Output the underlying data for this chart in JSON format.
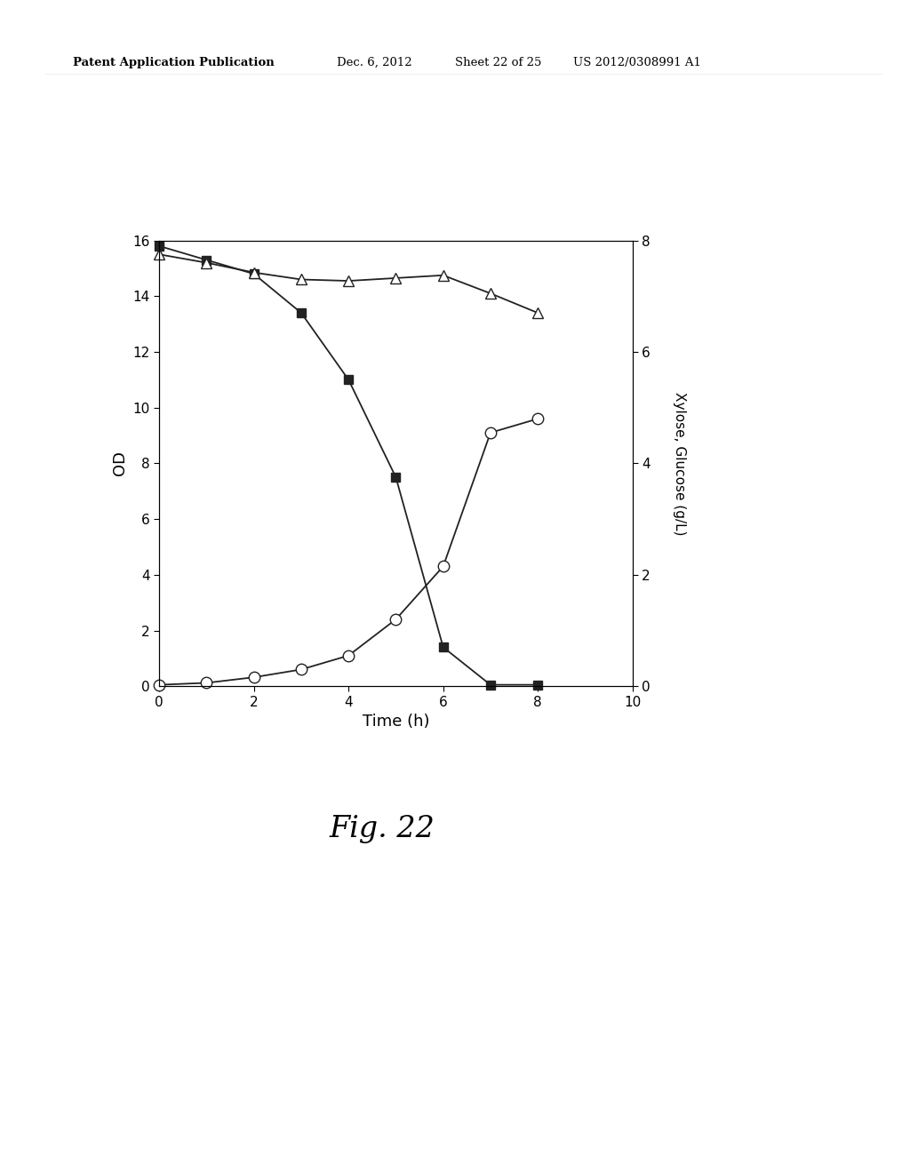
{
  "header_left": "Patent Application Publication",
  "header_mid1": "Dec. 6, 2012",
  "header_mid2": "Sheet 22 of 25",
  "header_right": "US 2012/0308991 A1",
  "fig_label": "Fig. 22",
  "xlabel": "Time (h)",
  "ylabel_left": "OD",
  "ylabel_right": "Xylose, Glucose (g/L)",
  "xlim": [
    0,
    10
  ],
  "ylim_left": [
    0,
    16
  ],
  "ylim_right": [
    0,
    8
  ],
  "xticks": [
    0,
    2,
    4,
    6,
    8,
    10
  ],
  "yticks_left": [
    0,
    2,
    4,
    6,
    8,
    10,
    12,
    14,
    16
  ],
  "yticks_right": [
    0,
    2,
    4,
    6,
    8
  ],
  "series_squares": {
    "x": [
      0,
      1,
      2,
      3,
      4,
      5,
      6,
      7,
      8
    ],
    "y": [
      15.8,
      15.3,
      14.8,
      13.4,
      11.0,
      7.5,
      1.4,
      0.05,
      0.05
    ],
    "color": "#222222",
    "marker": "s",
    "markersize": 7,
    "linewidth": 1.3
  },
  "series_circles": {
    "x": [
      0,
      1,
      2,
      3,
      4,
      5,
      6,
      7,
      8
    ],
    "y": [
      0.05,
      0.12,
      0.32,
      0.6,
      1.1,
      2.4,
      4.3,
      9.1,
      9.6
    ],
    "color": "#222222",
    "marker": "o",
    "markersize": 9,
    "linewidth": 1.3,
    "markerfacecolor": "white"
  },
  "series_triangles": {
    "x": [
      0,
      1,
      2,
      3,
      4,
      5,
      6,
      7,
      8
    ],
    "y": [
      15.5,
      15.2,
      14.85,
      14.6,
      14.55,
      14.65,
      14.75,
      14.1,
      13.4
    ],
    "color": "#222222",
    "marker": "^",
    "markersize": 8,
    "linewidth": 1.3,
    "markerfacecolor": "white"
  }
}
